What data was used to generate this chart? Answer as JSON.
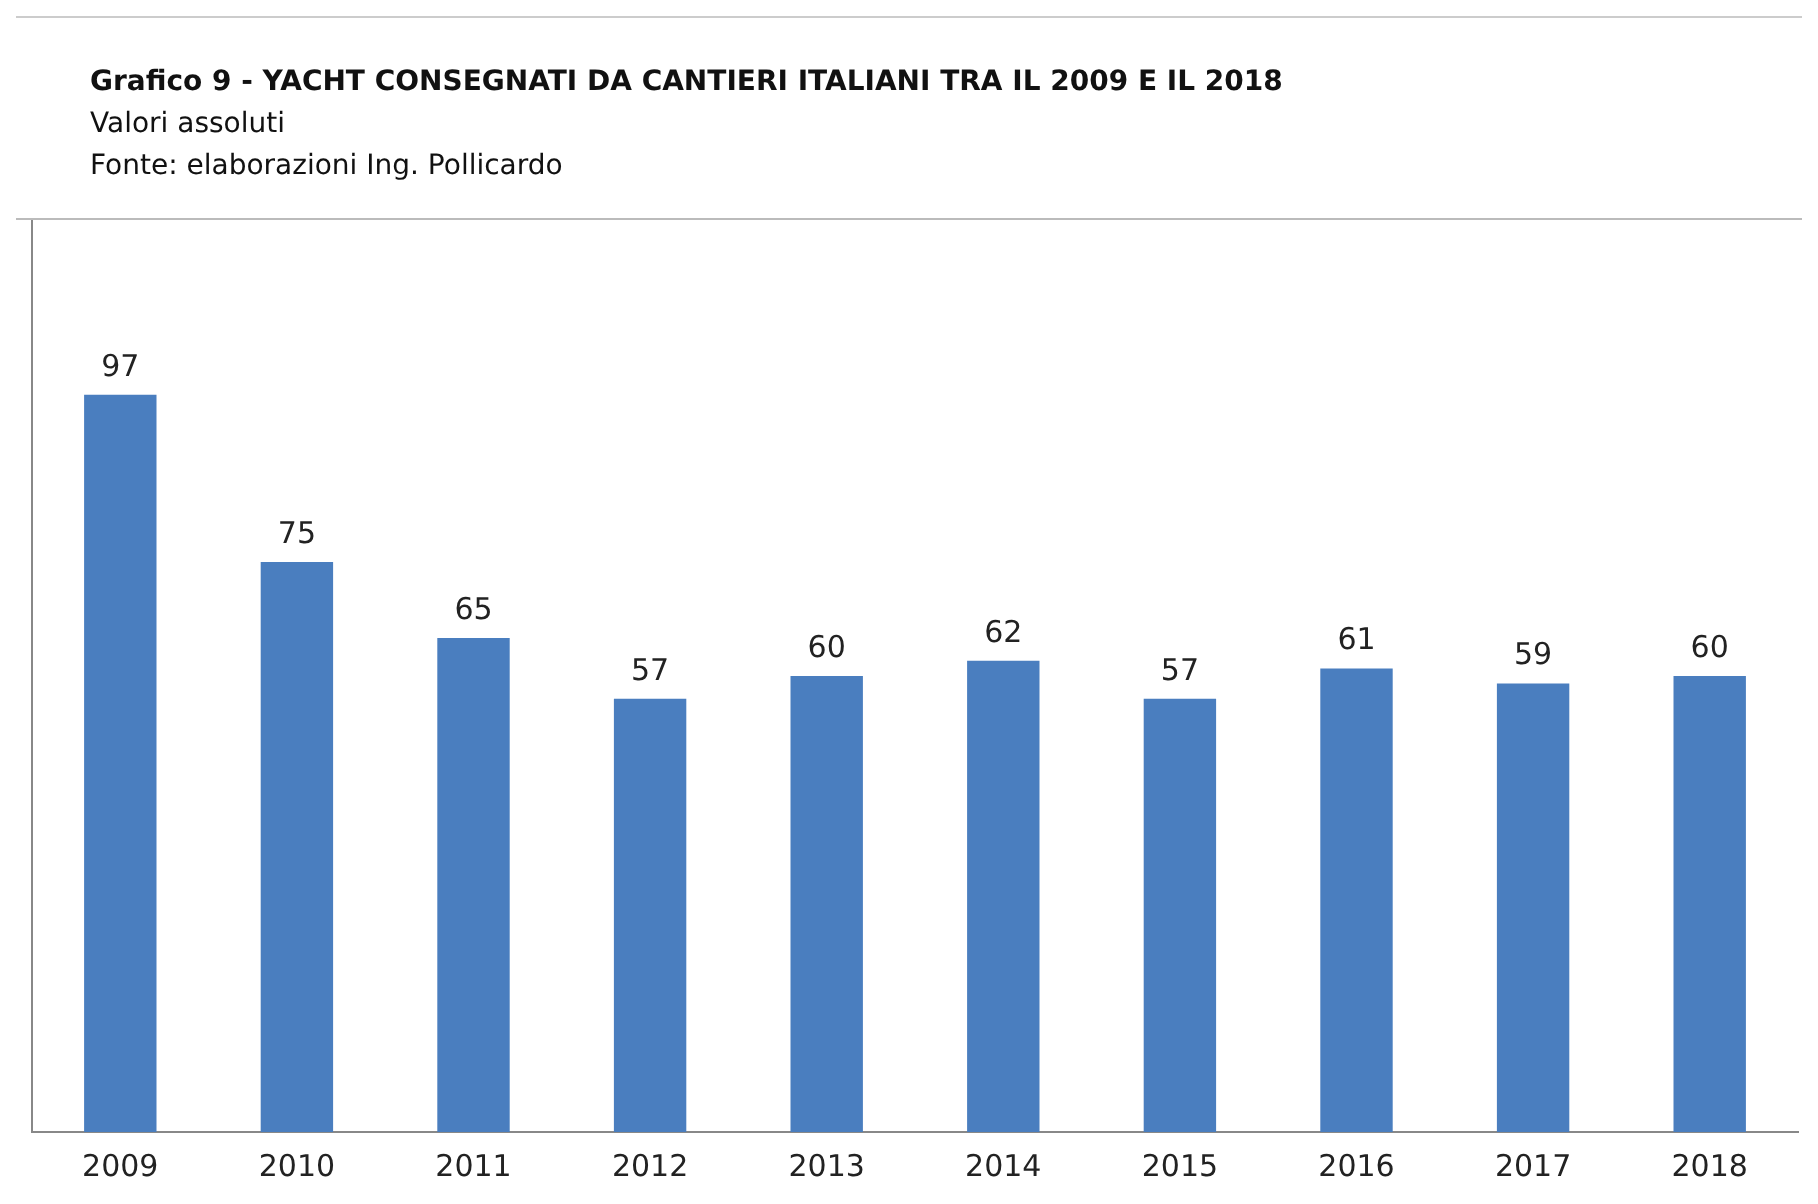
{
  "chart_data": {
    "type": "bar",
    "title": "Grafico 9 - YACHT CONSEGNATI DA CANTIERI ITALIANI TRA IL 2009 E IL 2018",
    "subtitle": "Valori assoluti",
    "annotations": [
      "Fonte: elaborazioni Ing. Pollicardo"
    ],
    "categories": [
      "2009",
      "2010",
      "2011",
      "2012",
      "2013",
      "2014",
      "2015",
      "2016",
      "2017",
      "2018"
    ],
    "values": [
      97,
      75,
      65,
      57,
      60,
      62,
      57,
      61,
      59,
      60
    ],
    "color": "#4a7ebf",
    "data_labels": true,
    "grid": false,
    "tick_labels": "x",
    "legend": false
  }
}
